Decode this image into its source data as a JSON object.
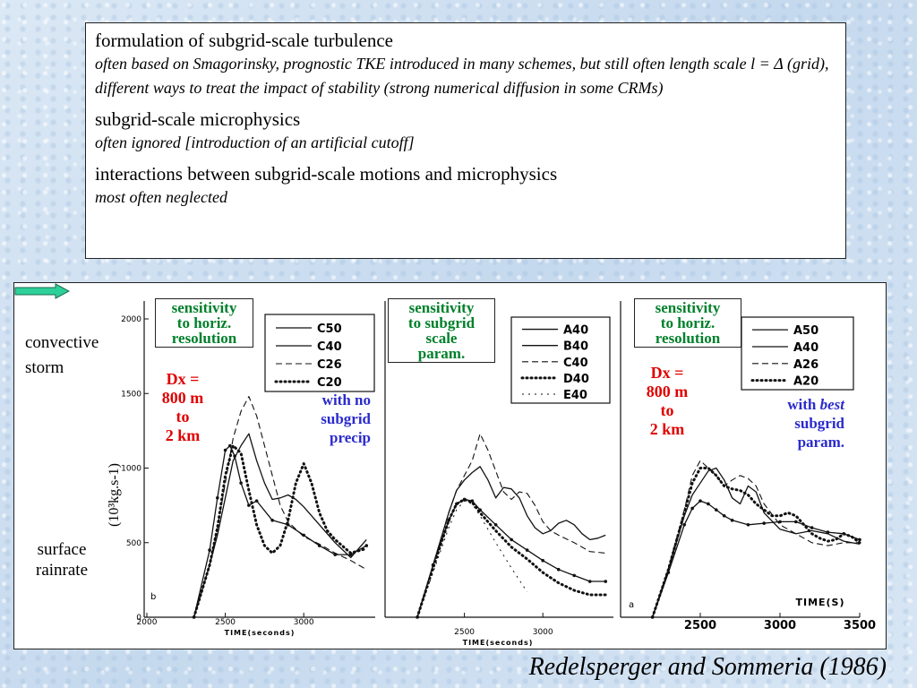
{
  "textbox": {
    "items": [
      {
        "heading": "formulation of subgrid-scale turbulence",
        "detail": "often based on Smagorinsky, prognostic TKE introduced in many schemes, but still often length scale l = Δ (grid), different ways to treat the impact of  stability (strong numerical diffusion in some CRMs)"
      },
      {
        "heading": "subgrid-scale microphysics",
        "detail": "often ignored [introduction of an artificial cutoff]"
      },
      {
        "heading": "interactions between subgrid-scale motions and microphysics",
        "detail": "most often neglected"
      }
    ]
  },
  "figure": {
    "left_labels": {
      "storm": "convective\nstorm",
      "surface": "surface\nrainrate"
    },
    "ylabel": "(10³kg.s-1)",
    "panel_notes": [
      {
        "box": "sensitivity\nto horiz.\nresolution",
        "red": "Dx =\n800 m\nto\n2 km",
        "blue": "with no\nsubgrid\nprecip"
      },
      {
        "box": "sensitivity\nto subgrid\nscale\nparam.",
        "red": "",
        "blue": ""
      },
      {
        "box": "sensitivity\nto horiz.\nresolution",
        "red": "Dx =\n800 m\nto\n2 km",
        "blue_pre": "with ",
        "blue_em": "best",
        "blue_post": "\nsubgrid\nparam."
      }
    ]
  },
  "citation": "Redelsperger and Sommeria (1986)",
  "colors": {
    "green": "#00802b",
    "red": "#e00000",
    "blue": "#2a2acd"
  },
  "chart_data": [
    {
      "type": "line",
      "panel_letter": "b",
      "xlabel": "TIME(seconds)",
      "x_ticks": [
        "2000",
        "2500",
        "3000"
      ],
      "y_ticks": [
        "0",
        "500",
        "1000",
        "1500",
        "2000"
      ],
      "xlim": [
        2000,
        3450
      ],
      "ylim": [
        0,
        2000
      ],
      "legend_position": "top-right",
      "series": [
        {
          "name": "C50",
          "style": "solid-dots",
          "points": [
            [
              2300,
              0
            ],
            [
              2400,
              450
            ],
            [
              2450,
              800
            ],
            [
              2500,
              1120
            ],
            [
              2530,
              1150
            ],
            [
              2560,
              1080
            ],
            [
              2600,
              900
            ],
            [
              2650,
              750
            ],
            [
              2700,
              780
            ],
            [
              2800,
              650
            ],
            [
              2900,
              620
            ],
            [
              3000,
              550
            ],
            [
              3100,
              480
            ],
            [
              3200,
              420
            ],
            [
              3300,
              420
            ],
            [
              3400,
              480
            ]
          ]
        },
        {
          "name": "C40",
          "style": "solid",
          "points": [
            [
              2300,
              0
            ],
            [
              2400,
              350
            ],
            [
              2450,
              550
            ],
            [
              2500,
              800
            ],
            [
              2550,
              1050
            ],
            [
              2600,
              1150
            ],
            [
              2650,
              1230
            ],
            [
              2700,
              1050
            ],
            [
              2750,
              900
            ],
            [
              2800,
              790
            ],
            [
              2850,
              800
            ],
            [
              2900,
              820
            ],
            [
              2950,
              790
            ],
            [
              3000,
              740
            ],
            [
              3100,
              620
            ],
            [
              3200,
              500
            ],
            [
              3300,
              400
            ],
            [
              3400,
              520
            ]
          ]
        },
        {
          "name": "C26",
          "style": "dashed",
          "points": [
            [
              2300,
              0
            ],
            [
              2400,
              350
            ],
            [
              2450,
              600
            ],
            [
              2500,
              900
            ],
            [
              2550,
              1200
            ],
            [
              2600,
              1380
            ],
            [
              2650,
              1480
            ],
            [
              2700,
              1350
            ],
            [
              2750,
              1150
            ],
            [
              2800,
              950
            ],
            [
              2850,
              750
            ],
            [
              2900,
              640
            ],
            [
              3000,
              540
            ],
            [
              3100,
              490
            ],
            [
              3200,
              430
            ],
            [
              3300,
              380
            ],
            [
              3400,
              320
            ]
          ]
        },
        {
          "name": "C20",
          "style": "dotted",
          "points": [
            [
              2300,
              0
            ],
            [
              2400,
              350
            ],
            [
              2450,
              600
            ],
            [
              2500,
              950
            ],
            [
              2550,
              1150
            ],
            [
              2600,
              1100
            ],
            [
              2650,
              850
            ],
            [
              2700,
              620
            ],
            [
              2750,
              480
            ],
            [
              2800,
              430
            ],
            [
              2850,
              480
            ],
            [
              2900,
              650
            ],
            [
              2950,
              900
            ],
            [
              3000,
              1030
            ],
            [
              3050,
              900
            ],
            [
              3100,
              700
            ],
            [
              3150,
              580
            ],
            [
              3200,
              520
            ],
            [
              3300,
              430
            ],
            [
              3400,
              460
            ]
          ]
        }
      ]
    },
    {
      "type": "line",
      "xlabel": "TIME(seconds)",
      "x_ticks": [
        "2500",
        "3000"
      ],
      "xlim": [
        2000,
        3450
      ],
      "ylim": [
        0,
        2000
      ],
      "legend_position": "top-right",
      "series": [
        {
          "name": "A40",
          "style": "solid",
          "points": [
            [
              2200,
              0
            ],
            [
              2300,
              350
            ],
            [
              2400,
              700
            ],
            [
              2450,
              850
            ],
            [
              2500,
              920
            ],
            [
              2550,
              970
            ],
            [
              2600,
              1010
            ],
            [
              2650,
              920
            ],
            [
              2700,
              800
            ],
            [
              2750,
              870
            ],
            [
              2800,
              860
            ],
            [
              2850,
              800
            ],
            [
              2900,
              680
            ],
            [
              2950,
              600
            ],
            [
              3000,
              560
            ],
            [
              3050,
              580
            ],
            [
              3100,
              630
            ],
            [
              3150,
              650
            ],
            [
              3200,
              620
            ],
            [
              3250,
              560
            ],
            [
              3300,
              520
            ],
            [
              3350,
              530
            ],
            [
              3400,
              550
            ]
          ]
        },
        {
          "name": "B40",
          "style": "solid-dots",
          "points": [
            [
              2200,
              0
            ],
            [
              2300,
              350
            ],
            [
              2400,
              650
            ],
            [
              2450,
              760
            ],
            [
              2500,
              790
            ],
            [
              2550,
              780
            ],
            [
              2600,
              720
            ],
            [
              2700,
              620
            ],
            [
              2800,
              520
            ],
            [
              2900,
              450
            ],
            [
              3000,
              380
            ],
            [
              3100,
              320
            ],
            [
              3200,
              280
            ],
            [
              3300,
              240
            ],
            [
              3400,
              240
            ]
          ]
        },
        {
          "name": "C40",
          "style": "dashed",
          "points": [
            [
              2200,
              0
            ],
            [
              2300,
              350
            ],
            [
              2400,
              700
            ],
            [
              2450,
              850
            ],
            [
              2500,
              950
            ],
            [
              2550,
              1050
            ],
            [
              2600,
              1230
            ],
            [
              2650,
              1120
            ],
            [
              2700,
              980
            ],
            [
              2750,
              840
            ],
            [
              2800,
              790
            ],
            [
              2850,
              840
            ],
            [
              2900,
              830
            ],
            [
              2950,
              750
            ],
            [
              3000,
              640
            ],
            [
              3050,
              580
            ],
            [
              3100,
              550
            ],
            [
              3200,
              500
            ],
            [
              3300,
              440
            ],
            [
              3400,
              430
            ]
          ]
        },
        {
          "name": "D40",
          "style": "dotted",
          "points": [
            [
              2200,
              0
            ],
            [
              2300,
              330
            ],
            [
              2400,
              650
            ],
            [
              2450,
              760
            ],
            [
              2500,
              790
            ],
            [
              2550,
              770
            ],
            [
              2600,
              700
            ],
            [
              2700,
              580
            ],
            [
              2800,
              470
            ],
            [
              2900,
              390
            ],
            [
              3000,
              300
            ],
            [
              3100,
              230
            ],
            [
              3200,
              180
            ],
            [
              3300,
              150
            ],
            [
              3400,
              150
            ]
          ]
        },
        {
          "name": "E40",
          "style": "x-marks",
          "points": [
            [
              2200,
              0
            ],
            [
              2300,
              300
            ],
            [
              2400,
              600
            ],
            [
              2450,
              720
            ],
            [
              2500,
              780
            ],
            [
              2550,
              760
            ],
            [
              2600,
              680
            ],
            [
              2700,
              500
            ],
            [
              2800,
              330
            ],
            [
              2850,
              250
            ],
            [
              2900,
              170
            ]
          ]
        }
      ]
    },
    {
      "type": "line",
      "panel_letter": "a",
      "xlabel": "TIME(S)",
      "x_ticks": [
        "2500",
        "3000",
        "3500"
      ],
      "xlim": [
        2000,
        3500
      ],
      "ylim": [
        0,
        2000
      ],
      "legend_position": "top-right",
      "series": [
        {
          "name": "A50",
          "style": "solid-dots",
          "points": [
            [
              2200,
              0
            ],
            [
              2300,
              300
            ],
            [
              2400,
              620
            ],
            [
              2450,
              730
            ],
            [
              2500,
              780
            ],
            [
              2550,
              760
            ],
            [
              2600,
              720
            ],
            [
              2650,
              680
            ],
            [
              2700,
              650
            ],
            [
              2800,
              620
            ],
            [
              2900,
              630
            ],
            [
              3000,
              640
            ],
            [
              3100,
              640
            ],
            [
              3200,
              600
            ],
            [
              3300,
              570
            ],
            [
              3400,
              560
            ],
            [
              3500,
              520
            ]
          ]
        },
        {
          "name": "A40",
          "style": "solid",
          "points": [
            [
              2200,
              0
            ],
            [
              2300,
              320
            ],
            [
              2400,
              680
            ],
            [
              2450,
              820
            ],
            [
              2500,
              900
            ],
            [
              2550,
              980
            ],
            [
              2600,
              1000
            ],
            [
              2650,
              920
            ],
            [
              2700,
              800
            ],
            [
              2750,
              760
            ],
            [
              2800,
              880
            ],
            [
              2850,
              840
            ],
            [
              2900,
              700
            ],
            [
              3000,
              590
            ],
            [
              3100,
              560
            ],
            [
              3200,
              580
            ],
            [
              3300,
              560
            ],
            [
              3400,
              510
            ],
            [
              3500,
              490
            ]
          ]
        },
        {
          "name": "A26",
          "style": "dashed",
          "points": [
            [
              2200,
              0
            ],
            [
              2300,
              330
            ],
            [
              2400,
              720
            ],
            [
              2450,
              950
            ],
            [
              2500,
              1050
            ],
            [
              2550,
              1000
            ],
            [
              2600,
              950
            ],
            [
              2650,
              880
            ],
            [
              2700,
              920
            ],
            [
              2750,
              950
            ],
            [
              2800,
              930
            ],
            [
              2850,
              880
            ],
            [
              2900,
              760
            ],
            [
              3000,
              620
            ],
            [
              3100,
              560
            ],
            [
              3200,
              500
            ],
            [
              3300,
              480
            ],
            [
              3400,
              500
            ],
            [
              3500,
              500
            ]
          ]
        },
        {
          "name": "A20",
          "style": "dotted",
          "points": [
            [
              2200,
              0
            ],
            [
              2300,
              320
            ],
            [
              2400,
              700
            ],
            [
              2450,
              900
            ],
            [
              2500,
              1000
            ],
            [
              2550,
              1000
            ],
            [
              2600,
              950
            ],
            [
              2650,
              880
            ],
            [
              2700,
              860
            ],
            [
              2750,
              850
            ],
            [
              2800,
              820
            ],
            [
              2850,
              760
            ],
            [
              2900,
              720
            ],
            [
              2950,
              680
            ],
            [
              3000,
              680
            ],
            [
              3050,
              700
            ],
            [
              3100,
              680
            ],
            [
              3150,
              620
            ],
            [
              3200,
              560
            ],
            [
              3250,
              530
            ],
            [
              3300,
              510
            ],
            [
              3350,
              520
            ],
            [
              3400,
              560
            ],
            [
              3450,
              540
            ],
            [
              3500,
              500
            ]
          ]
        }
      ]
    }
  ]
}
